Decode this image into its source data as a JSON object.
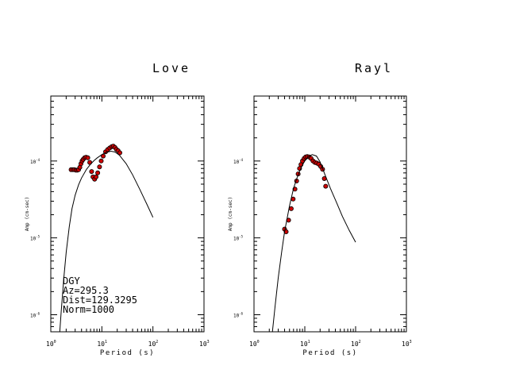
{
  "chart_data": [
    {
      "type": "scatter",
      "title": "Love",
      "xlabel": "Period (s)",
      "ylabel": "Amp (cm-sec)",
      "xscale": "log",
      "yscale": "log",
      "xlim": [
        1,
        1000
      ],
      "ylim": [
        6e-07,
        0.0007
      ],
      "x_ticks": [
        {
          "base": "10",
          "exp": "0"
        },
        {
          "base": "10",
          "exp": "1"
        },
        {
          "base": "10",
          "exp": "2"
        },
        {
          "base": "10",
          "exp": "3"
        }
      ],
      "y_ticks": [
        {
          "base": "10",
          "exp": "-6",
          "value": 1e-06
        },
        {
          "base": "10",
          "exp": "-5",
          "value": 1e-05
        },
        {
          "base": "10",
          "exp": "-4",
          "value": 0.0001
        }
      ],
      "info_text": [
        "DGY",
        "Az=295.3",
        "Dist=129.3295",
        "Norm=1000"
      ],
      "series": [
        {
          "kind": "observed",
          "color": "#cc0000",
          "x": [
            2.5,
            2.7,
            2.9,
            3.1,
            3.3,
            3.5,
            3.7,
            3.9,
            4.1,
            4.3,
            4.6,
            4.9,
            5.3,
            5.8,
            6.3,
            6.7,
            7.2,
            7.7,
            8.3,
            9.0,
            9.7,
            10.6,
            11.8,
            13.0,
            14.3,
            15.6,
            16.8,
            18.0,
            19.3,
            20.8,
            22.5
          ],
          "y": [
            7.7e-05,
            7.7e-05,
            7.7e-05,
            7.6e-05,
            7.6e-05,
            7.7e-05,
            8.3e-05,
            9.2e-05,
            0.0001,
            0.000105,
            0.00011,
            0.000112,
            0.00011,
            9.6e-05,
            7.3e-05,
            6.2e-05,
            5.8e-05,
            6.2e-05,
            7e-05,
            8.4e-05,
            0.0001,
            0.000116,
            0.000132,
            0.000141,
            0.000148,
            0.000154,
            0.000156,
            0.00015,
            0.000142,
            0.000136,
            0.000128
          ]
        },
        {
          "kind": "synthetic",
          "color": "#000000",
          "x": [
            1.5,
            1.6,
            1.8,
            2.0,
            2.3,
            2.6,
            3.0,
            3.5,
            4.0,
            5.0,
            6.0,
            7.0,
            8.0,
            10.0,
            12.0,
            15.0,
            18.0,
            22.0,
            30.0,
            40.0,
            55.0,
            75.0,
            100.0
          ],
          "y": [
            6e-07,
            1.1e-06,
            3e-06,
            6.5e-06,
            1.4e-05,
            2.4e-05,
            3.6e-05,
            4.9e-05,
            6e-05,
            7.8e-05,
            9.1e-05,
            0.000101,
            0.000109,
            0.000121,
            0.000129,
            0.000134,
            0.000131,
            0.000119,
            9.2e-05,
            6.6e-05,
            4.3e-05,
            2.8e-05,
            1.85e-05
          ]
        }
      ]
    },
    {
      "type": "scatter",
      "title": "Rayl",
      "xlabel": "Period (s)",
      "ylabel": "Amp (cm-sec)",
      "xscale": "log",
      "yscale": "log",
      "xlim": [
        1,
        1000
      ],
      "ylim": [
        6e-07,
        0.0007
      ],
      "x_ticks": [
        {
          "base": "10",
          "exp": "0"
        },
        {
          "base": "10",
          "exp": "1"
        },
        {
          "base": "10",
          "exp": "2"
        },
        {
          "base": "10",
          "exp": "3"
        }
      ],
      "y_ticks": [
        {
          "base": "10",
          "exp": "-6",
          "value": 1e-06
        },
        {
          "base": "10",
          "exp": "-5",
          "value": 1e-05
        },
        {
          "base": "10",
          "exp": "-4",
          "value": 0.0001
        }
      ],
      "info_text": [],
      "series": [
        {
          "kind": "observed",
          "color": "#cc0000",
          "x": [
            4.0,
            4.3,
            4.8,
            5.4,
            5.9,
            6.4,
            6.9,
            7.4,
            7.9,
            8.4,
            9.0,
            9.7,
            10.4,
            11.2,
            12.2,
            13.3,
            14.5,
            15.8,
            17.2,
            18.8,
            20.6,
            22.4,
            24.2,
            25.8
          ],
          "y": [
            1.3e-05,
            1.2e-05,
            1.7e-05,
            2.4e-05,
            3.2e-05,
            4.3e-05,
            5.5e-05,
            6.8e-05,
            8e-05,
            9e-05,
            0.0001,
            0.000108,
            0.000113,
            0.000114,
            0.000113,
            0.000108,
            0.0001,
            9.6e-05,
            9.4e-05,
            9.1e-05,
            8.5e-05,
            7.8e-05,
            5.9e-05,
            4.7e-05
          ]
        },
        {
          "kind": "synthetic",
          "color": "#000000",
          "x": [
            2.3,
            2.6,
            3.0,
            3.5,
            4.0,
            5.0,
            6.0,
            7.0,
            8.0,
            9.0,
            10.0,
            12.0,
            14.0,
            17.0,
            20.0,
            25.0,
            32.0,
            42.0,
            55.0,
            75.0,
            100.0
          ],
          "y": [
            6e-07,
            1.3e-06,
            3e-06,
            6.5e-06,
            1.2e-05,
            2.6e-05,
            4.4e-05,
            6e-05,
            7.5e-05,
            8.9e-05,
            0.0001,
            0.000115,
            0.000121,
            0.000116,
            9.7e-05,
            6.6e-05,
            4.4e-05,
            2.9e-05,
            1.9e-05,
            1.25e-05,
            8.8e-06
          ]
        }
      ]
    }
  ]
}
